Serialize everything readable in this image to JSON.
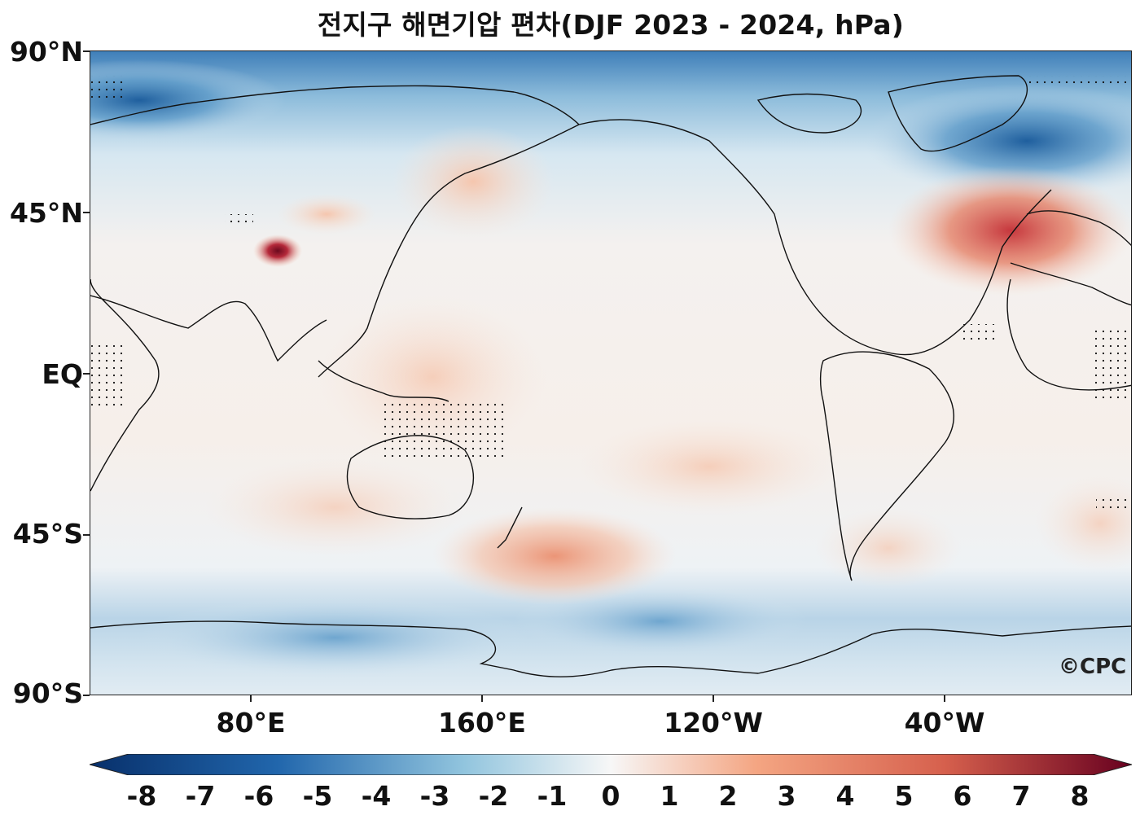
{
  "title": "전지구 해면기압 편차(DJF 2023 - 2024, hPa)",
  "map": {
    "lat_labels": [
      "90°N",
      "45°N",
      "EQ",
      "45°S",
      "90°S"
    ],
    "lon_labels": [
      "80°E",
      "160°E",
      "120°W",
      "40°W"
    ],
    "watermark": "©CPC"
  },
  "colorbar": {
    "ticks": [
      "-8",
      "-7",
      "-6",
      "-5",
      "-4",
      "-3",
      "-2",
      "-1",
      "0",
      "1",
      "2",
      "3",
      "4",
      "5",
      "6",
      "7",
      "8"
    ],
    "min": -8,
    "max": 8,
    "colors": {
      "neg_dark": "#08306b",
      "neg_mid": "#2166ac",
      "neg_light": "#92c5de",
      "neutral": "#f7f7f7",
      "pos_light": "#f4a582",
      "pos_mid": "#d6604d",
      "pos_dark": "#67001f"
    }
  }
}
